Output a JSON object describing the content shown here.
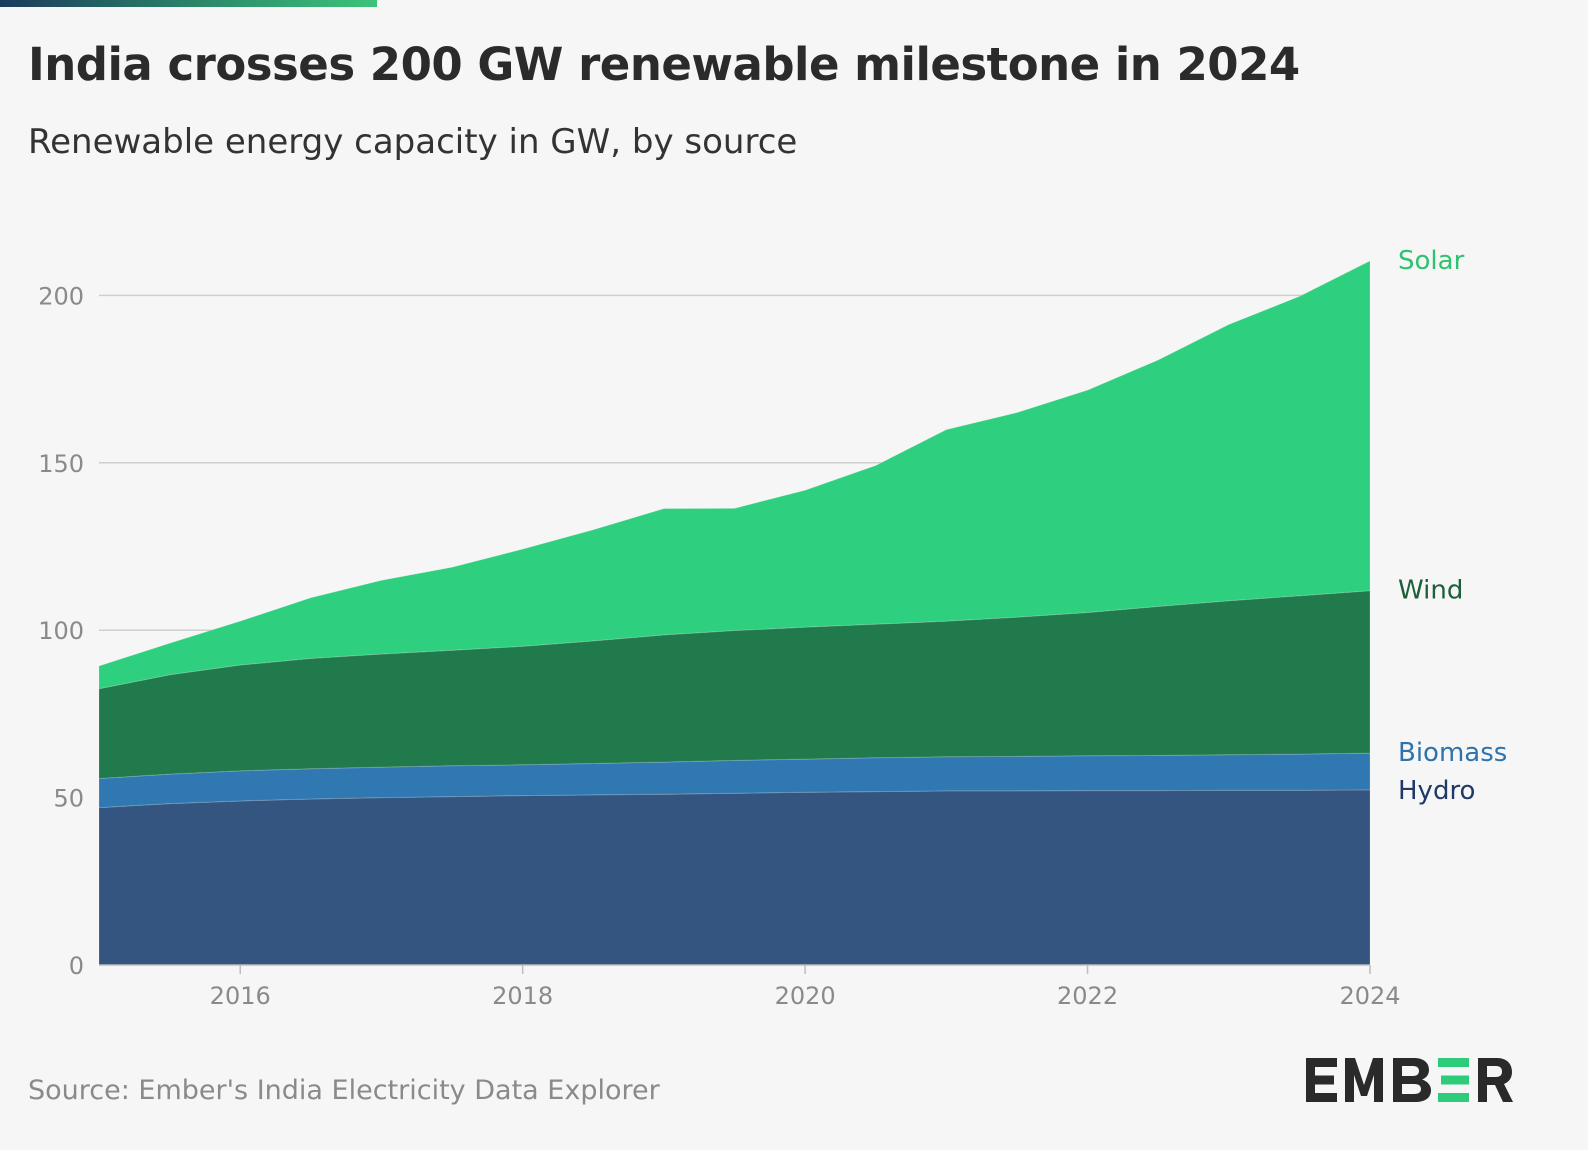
{
  "header": {
    "title": "India crosses 200 GW renewable milestone in 2024",
    "subtitle": "Renewable energy capacity in GW, by source"
  },
  "footer": {
    "source": "Source: Ember's India Electricity Data Explorer",
    "logo_text": "EMBER"
  },
  "colors": {
    "accent_dark": "#1b3a5c",
    "accent_green": "#3cc47a",
    "logo_dark": "#2a2a2a",
    "logo_green": "#2ecc7a"
  },
  "chart_data": {
    "type": "area",
    "stacked": true,
    "x": [
      2015,
      2015.5,
      2016,
      2016.5,
      2017,
      2017.5,
      2018,
      2018.5,
      2019,
      2019.5,
      2020,
      2020.5,
      2021,
      2021.5,
      2022,
      2022.5,
      2023,
      2023.5,
      2024
    ],
    "xlim": [
      2015,
      2024
    ],
    "ylim": [
      0,
      210
    ],
    "xticks": [
      2016,
      2018,
      2020,
      2022,
      2024
    ],
    "yticks": [
      0,
      50,
      100,
      150,
      200
    ],
    "grid": true,
    "legend": "right-end labels",
    "series": [
      {
        "name": "Hydro",
        "color": "#34557f",
        "label_color": "#1f3a66",
        "values": [
          47.0,
          48.2,
          49.0,
          49.6,
          50.0,
          50.3,
          50.6,
          50.8,
          51.0,
          51.3,
          51.6,
          51.8,
          52.0,
          52.0,
          52.1,
          52.1,
          52.2,
          52.2,
          52.3
        ]
      },
      {
        "name": "Biomass",
        "color": "#3078b2",
        "label_color": "#2f73ad",
        "values": [
          8.7,
          8.8,
          9.0,
          9.0,
          9.1,
          9.2,
          9.2,
          9.4,
          9.6,
          9.8,
          9.9,
          10.1,
          10.2,
          10.3,
          10.4,
          10.5,
          10.6,
          10.8,
          11.0
        ]
      },
      {
        "name": "Wind",
        "color": "#217a4b",
        "label_color": "#1d5e3c",
        "values": [
          26.8,
          29.7,
          31.6,
          33.0,
          33.8,
          34.5,
          35.4,
          36.6,
          38.0,
          38.8,
          39.4,
          39.9,
          40.5,
          41.6,
          42.8,
          44.5,
          46.0,
          47.3,
          48.5
        ]
      },
      {
        "name": "Solar",
        "color": "#2ecf7e",
        "label_color": "#2ec46f",
        "values": [
          6.8,
          9.4,
          13.1,
          18.1,
          22.0,
          24.8,
          29.0,
          33.2,
          37.7,
          36.5,
          40.9,
          47.4,
          57.2,
          61.1,
          66.4,
          73.6,
          82.5,
          89.4,
          98.5
        ]
      }
    ]
  }
}
